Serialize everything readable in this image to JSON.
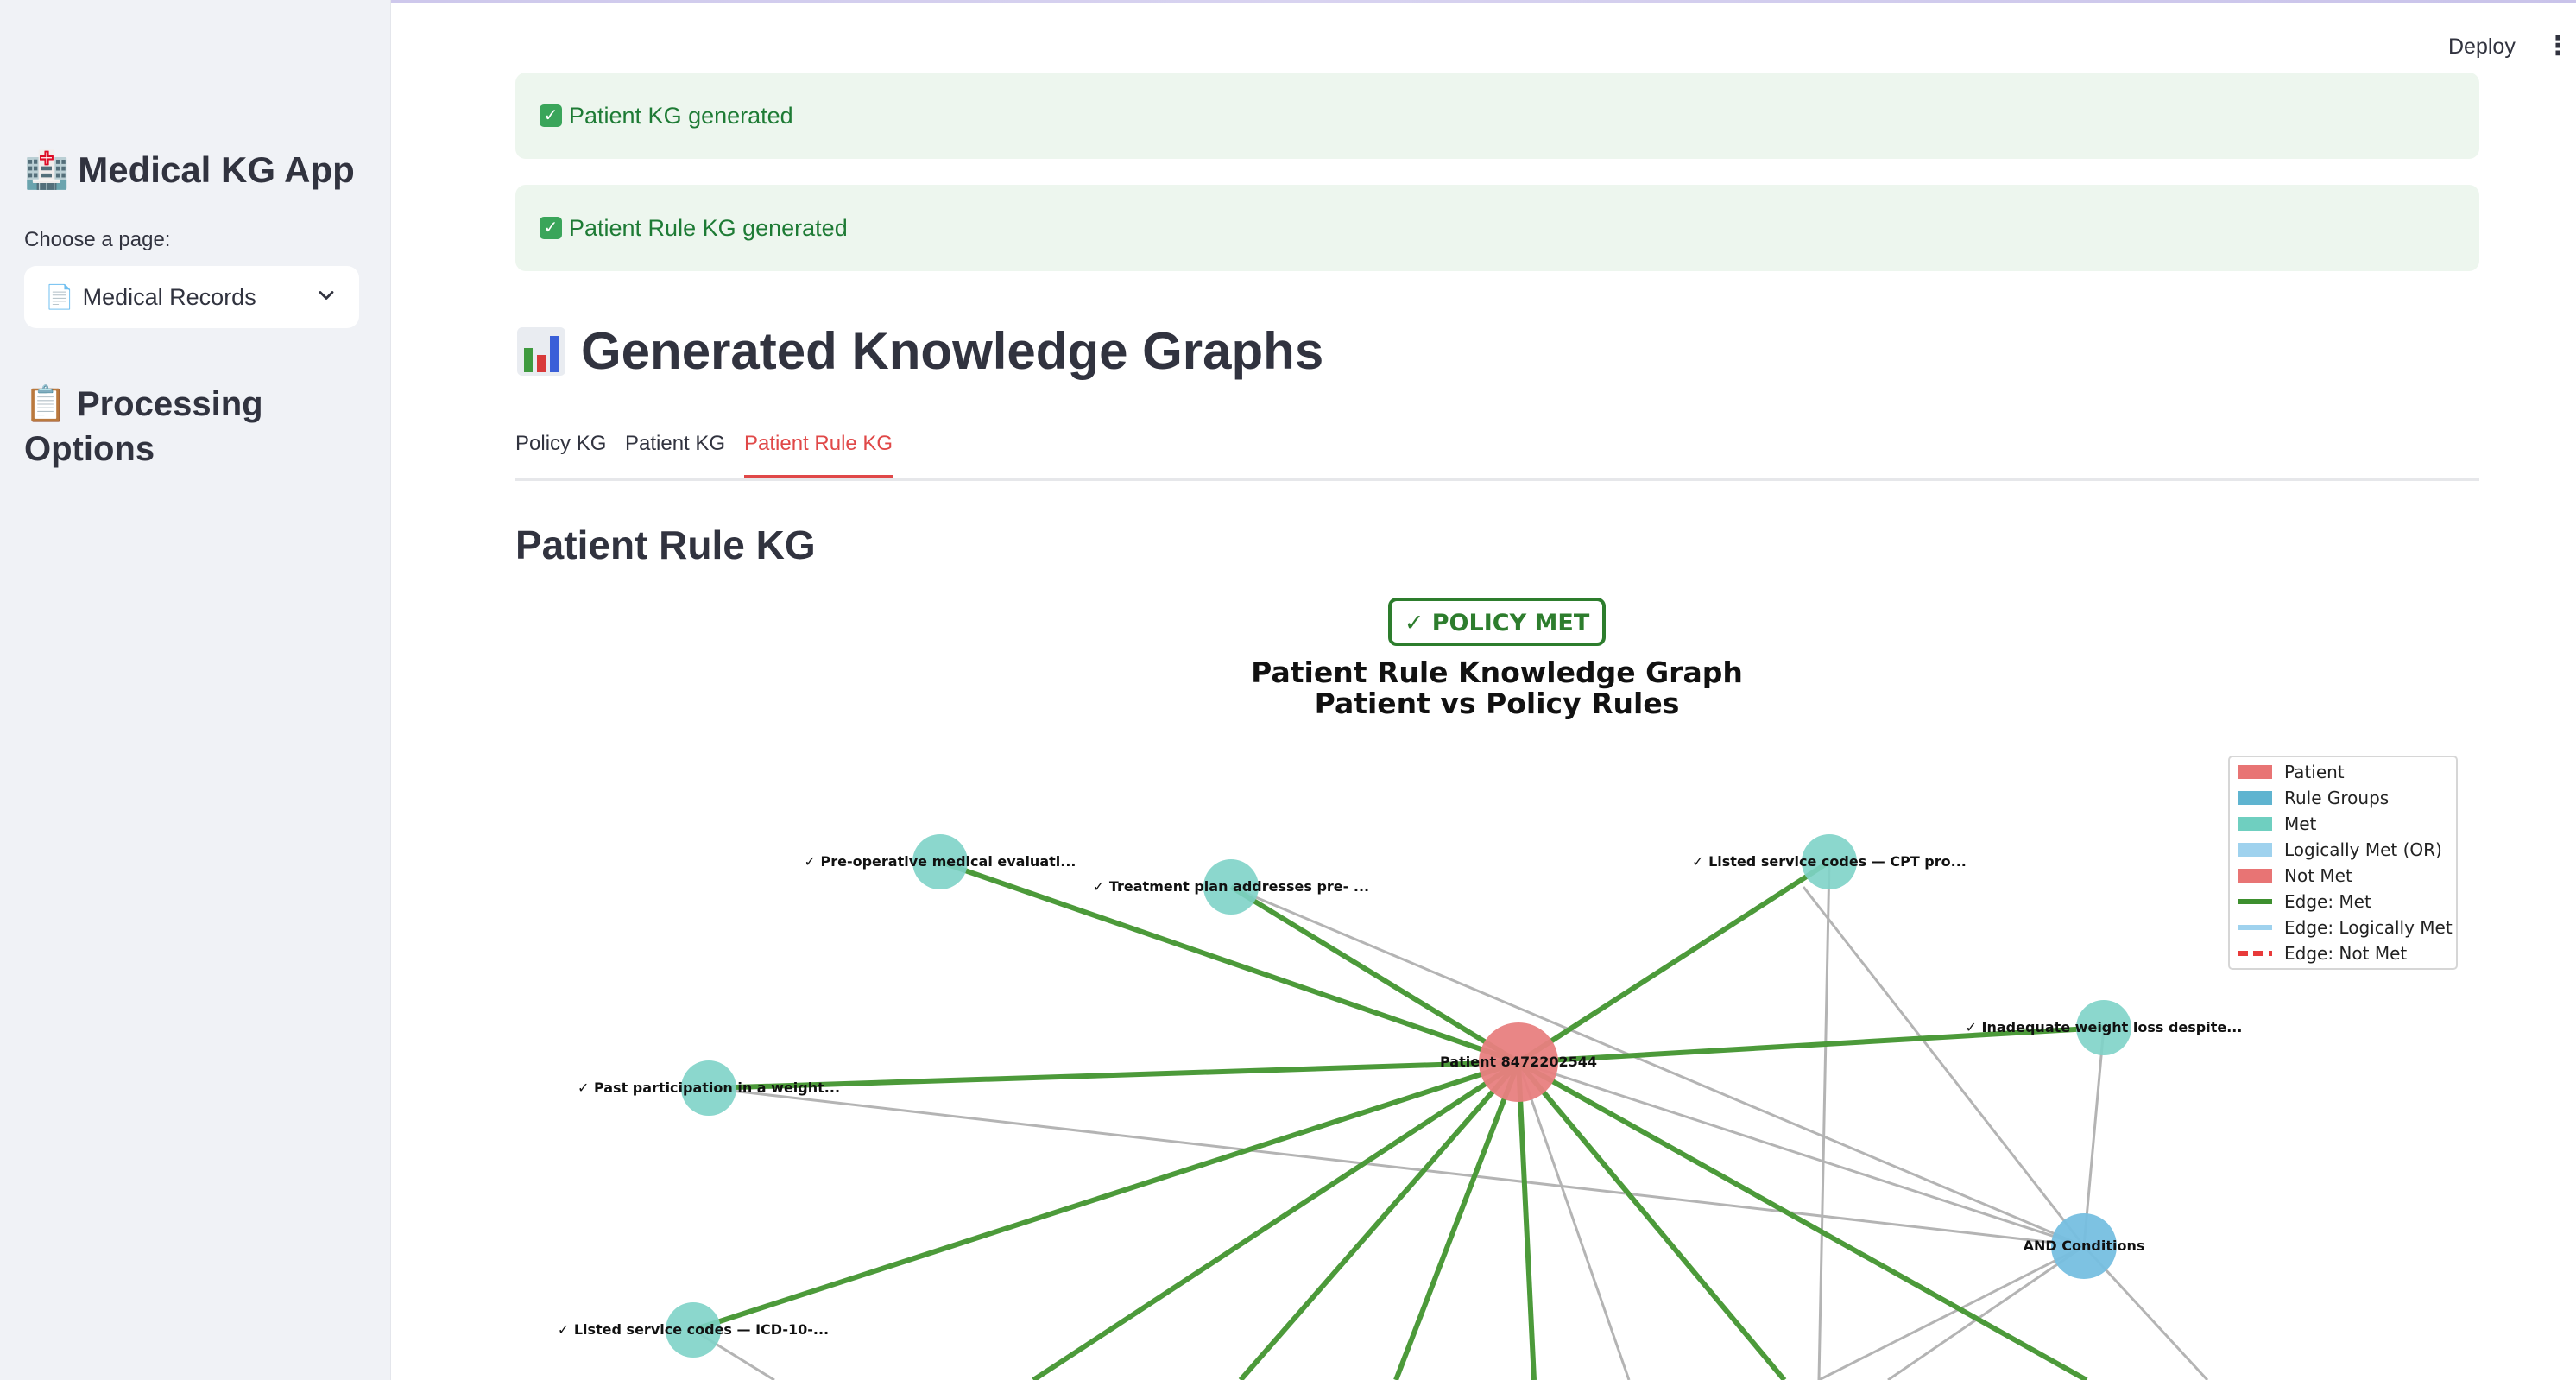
{
  "sidebar": {
    "app_icon": "🏥",
    "app_title": "Medical KG App",
    "choose_label": "Choose a page:",
    "select_icon": "📄",
    "select_value": "Medical Records",
    "processing_icon": "📋",
    "processing_title": "Processing Options"
  },
  "header": {
    "deploy_label": "Deploy",
    "menu_icon": "⋮"
  },
  "alerts": [
    {
      "icon": "✅",
      "text": "Patient KG generated"
    },
    {
      "icon": "✅",
      "text": "Patient Rule KG generated"
    }
  ],
  "main": {
    "section_icon": "📊",
    "section_title": "Generated Knowledge Graphs",
    "tabs": [
      {
        "label": "Policy KG",
        "active": false
      },
      {
        "label": "Patient KG",
        "active": false
      },
      {
        "label": "Patient Rule KG",
        "active": true
      }
    ],
    "subheading": "Patient Rule KG"
  },
  "graph": {
    "badge": "✓ POLICY MET",
    "title_line1": "Patient Rule Knowledge Graph",
    "title_line2": "Patient vs Policy Rules",
    "center_node": "Patient 8472202544",
    "and_node": "AND Conditions",
    "rule_nodes": [
      "✓ Pre-operative medical evaluati...",
      "✓ Treatment plan addresses pre- ...",
      "✓ Listed service codes — CPT pro...",
      "✓ Inadequate weight loss despite...",
      "✓ Past participation in a weight...",
      "✓ Listed service codes — ICD-10-..."
    ],
    "legend": [
      {
        "label": "Patient",
        "color": "#e87474",
        "kind": "patch"
      },
      {
        "label": "Rule Groups",
        "color": "#5fb4d0",
        "kind": "patch"
      },
      {
        "label": "Met",
        "color": "#6fcfc0",
        "kind": "patch"
      },
      {
        "label": "Logically Met (OR)",
        "color": "#9fd2ee",
        "kind": "patch"
      },
      {
        "label": "Not Met",
        "color": "#e87474",
        "kind": "patch"
      },
      {
        "label": "Edge: Met",
        "color": "#3d8f2e",
        "kind": "line"
      },
      {
        "label": "Edge: Logically Met",
        "color": "#9fd2ee",
        "kind": "line"
      },
      {
        "label": "Edge: Not Met",
        "color": "#e83a3a",
        "kind": "dash"
      }
    ],
    "colors": {
      "met_edge": "#4c9a3a",
      "grey_edge": "#b4b4b4",
      "patient_node": "#e88080",
      "met_node": "#7ed3c8",
      "group_node": "#76bfe0",
      "badge_border": "#2d7d2d"
    }
  }
}
